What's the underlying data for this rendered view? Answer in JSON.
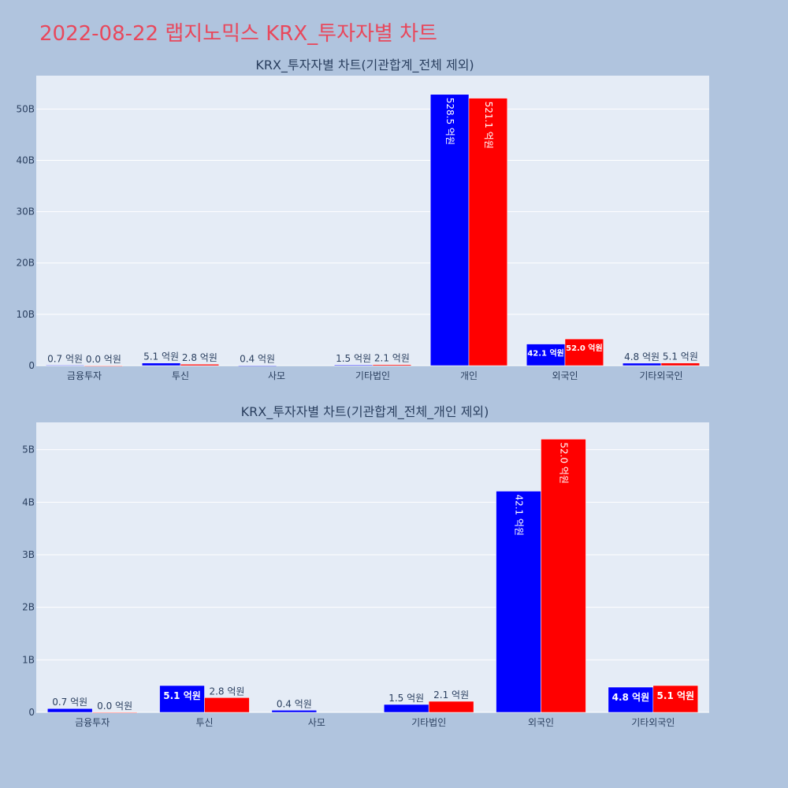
{
  "title": "2022-08-22 랩지노믹스 KRX_투자자별 차트",
  "colors": {
    "buy": "#0000ff",
    "sell": "#ff0000",
    "title": "#e8485c",
    "plot_bg": "#e5ecf6",
    "paper_bg": "#b0c4de"
  },
  "chart_data": [
    {
      "type": "bar",
      "title": "KRX_투자자별 차트(기관합계_전체 제외)",
      "categories": [
        "금융투자",
        "투신",
        "사모",
        "기타법인",
        "개인",
        "외국인",
        "기타외국인"
      ],
      "series": [
        {
          "color": "#0000ff",
          "values": [
            72000000,
            510000000,
            40000000,
            150000000,
            52850000000,
            4210000000,
            480000000
          ],
          "labels": [
            "0.7 억원",
            "5.1 억원",
            "0.4 억원",
            "1.5 억원",
            "528.5 억원",
            "42.1 억원",
            "4.8 억원"
          ]
        },
        {
          "color": "#ff0000",
          "values": [
            1000000,
            280000000,
            0,
            210000000,
            52110000000,
            5200000000,
            510000000
          ],
          "labels": [
            "0.0 억원",
            "2.8 억원",
            "",
            "2.1 억원",
            "521.1 억원",
            "52.0 억원",
            "5.1 억원"
          ]
        }
      ],
      "ylim": [
        0,
        56500000000
      ],
      "yticks": [
        0,
        10000000000,
        20000000000,
        30000000000,
        40000000000,
        50000000000
      ],
      "ytick_labels": [
        "0",
        "10B",
        "20B",
        "30B",
        "40B",
        "50B"
      ],
      "grid": true
    },
    {
      "type": "bar",
      "title": "KRX_투자자별 차트(기관합계_전체_개인 제외)",
      "categories": [
        "금융투자",
        "투신",
        "사모",
        "기타법인",
        "외국인",
        "기타외국인"
      ],
      "series": [
        {
          "color": "#0000ff",
          "values": [
            72000000,
            510000000,
            40000000,
            150000000,
            4210000000,
            480000000
          ],
          "labels": [
            "0.7 억원",
            "5.1 억원",
            "0.4 억원",
            "1.5 억원",
            "42.1 억원",
            "4.8 억원"
          ]
        },
        {
          "color": "#ff0000",
          "values": [
            1000000,
            280000000,
            0,
            210000000,
            5200000000,
            510000000
          ],
          "labels": [
            "0.0 억원",
            "2.8 억원",
            "",
            "2.1 억원",
            "52.0 억원",
            "5.1 억원"
          ]
        }
      ],
      "ylim": [
        0,
        5520000000
      ],
      "yticks": [
        0,
        1000000000,
        2000000000,
        3000000000,
        4000000000,
        5000000000
      ],
      "ytick_labels": [
        "0",
        "1B",
        "2B",
        "3B",
        "4B",
        "5B"
      ],
      "grid": true
    }
  ]
}
